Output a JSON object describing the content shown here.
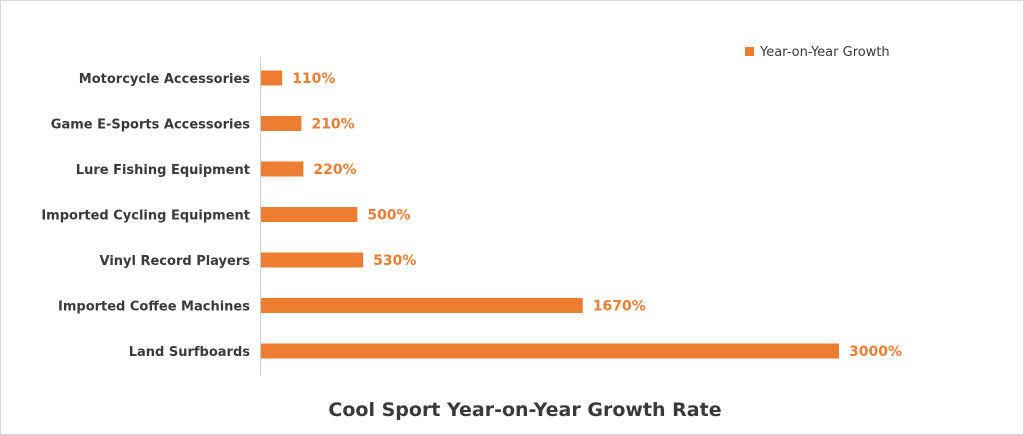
{
  "chart_data": {
    "type": "bar",
    "orientation": "horizontal",
    "title": "Cool Sport Year-on-Year Growth Rate",
    "categories": [
      "Motorcycle Accessories",
      "Game E-Sports Accessories",
      "Lure Fishing Equipment",
      "Imported Cycling Equipment",
      "Vinyl Record Players",
      "Imported Coffee Machines",
      "Land Surfboards"
    ],
    "series": [
      {
        "name": "Year-on-Year Growth",
        "values": [
          110,
          210,
          220,
          500,
          530,
          1670,
          3000
        ],
        "labels": [
          "110%",
          "210%",
          "220%",
          "500%",
          "530%",
          "1670%",
          "3000%"
        ],
        "color": "#ed7d31"
      }
    ],
    "xlim": [
      0,
      3000
    ],
    "unit": "%",
    "grid": false,
    "legend_position": "top-right"
  }
}
